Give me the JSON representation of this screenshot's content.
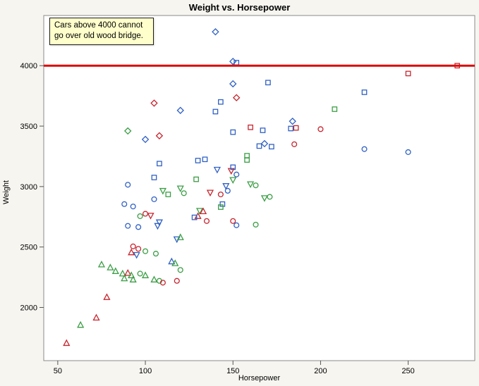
{
  "annotation": {
    "text": "Cars above 4000 cannot go over old wood bridge."
  },
  "chart_data": {
    "type": "scatter",
    "title": "Weight vs. Horsepower",
    "xlabel": "Horsepower",
    "ylabel": "Weight",
    "xlim": [
      42,
      288
    ],
    "ylim": [
      1560,
      4415
    ],
    "xticks": [
      50,
      100,
      150,
      200,
      250
    ],
    "yticks": [
      2000,
      2500,
      3000,
      3500,
      4000
    ],
    "grid": false,
    "legend": "none",
    "ref_line": {
      "y": 4000,
      "color": "#dd0a0a",
      "width": 3
    },
    "colors": {
      "r": "#c6252f",
      "g": "#3b9e45",
      "b": "#3061c4"
    },
    "frame_color": "#8a8a8a",
    "plot_bg": "#ffffff",
    "marker_names": {
      "c": "circle",
      "s": "square",
      "d": "diamond",
      "tu": "triangle-up",
      "td": "triangle-down"
    },
    "point_format": [
      "horsepower",
      "weight",
      "color_key",
      "marker_key"
    ],
    "points": [
      [
        140,
        4280,
        "b",
        "d"
      ],
      [
        150,
        4035,
        "b",
        "d"
      ],
      [
        152,
        4025,
        "b",
        "s"
      ],
      [
        278,
        4000,
        "r",
        "s"
      ],
      [
        250,
        3935,
        "r",
        "s"
      ],
      [
        170,
        3860,
        "b",
        "s"
      ],
      [
        150,
        3850,
        "b",
        "d"
      ],
      [
        225,
        3780,
        "b",
        "s"
      ],
      [
        152,
        3735,
        "r",
        "d"
      ],
      [
        143,
        3700,
        "b",
        "s"
      ],
      [
        105,
        3690,
        "r",
        "d"
      ],
      [
        140,
        3620,
        "b",
        "s"
      ],
      [
        120,
        3630,
        "b",
        "d"
      ],
      [
        208,
        3640,
        "g",
        "s"
      ],
      [
        184,
        3540,
        "b",
        "d"
      ],
      [
        183,
        3480,
        "b",
        "s"
      ],
      [
        160,
        3490,
        "r",
        "s"
      ],
      [
        186,
        3485,
        "r",
        "s"
      ],
      [
        200,
        3475,
        "r",
        "c"
      ],
      [
        150,
        3450,
        "b",
        "s"
      ],
      [
        167,
        3465,
        "b",
        "s"
      ],
      [
        108,
        3420,
        "r",
        "d"
      ],
      [
        90,
        3460,
        "g",
        "d"
      ],
      [
        100,
        3390,
        "b",
        "d"
      ],
      [
        168,
        3355,
        "b",
        "d"
      ],
      [
        172,
        3330,
        "b",
        "s"
      ],
      [
        165,
        3335,
        "b",
        "s"
      ],
      [
        225,
        3310,
        "b",
        "c"
      ],
      [
        250,
        3285,
        "b",
        "c"
      ],
      [
        185,
        3350,
        "r",
        "c"
      ],
      [
        158,
        3255,
        "g",
        "s"
      ],
      [
        158,
        3220,
        "g",
        "s"
      ],
      [
        130,
        3215,
        "b",
        "s"
      ],
      [
        108,
        3190,
        "b",
        "s"
      ],
      [
        134,
        3225,
        "b",
        "s"
      ],
      [
        141,
        3140,
        "b",
        "td"
      ],
      [
        149,
        3130,
        "r",
        "td"
      ],
      [
        150,
        3160,
        "b",
        "s"
      ],
      [
        152,
        3100,
        "b",
        "c"
      ],
      [
        105,
        3075,
        "b",
        "s"
      ],
      [
        90,
        3015,
        "b",
        "c"
      ],
      [
        129,
        3060,
        "g",
        "s"
      ],
      [
        150,
        3055,
        "g",
        "td"
      ],
      [
        160,
        3020,
        "g",
        "td"
      ],
      [
        163,
        3010,
        "g",
        "c"
      ],
      [
        147,
        2965,
        "b",
        "c"
      ],
      [
        146,
        3005,
        "b",
        "td"
      ],
      [
        120,
        2985,
        "g",
        "td"
      ],
      [
        122,
        2945,
        "g",
        "c"
      ],
      [
        110,
        2965,
        "g",
        "td"
      ],
      [
        113,
        2935,
        "g",
        "s"
      ],
      [
        137,
        2950,
        "r",
        "td"
      ],
      [
        143,
        2935,
        "r",
        "c"
      ],
      [
        88,
        2855,
        "b",
        "c"
      ],
      [
        93,
        2835,
        "b",
        "c"
      ],
      [
        105,
        2895,
        "b",
        "c"
      ],
      [
        131,
        2800,
        "g",
        "td"
      ],
      [
        133,
        2795,
        "r",
        "tu"
      ],
      [
        144,
        2855,
        "b",
        "s"
      ],
      [
        143,
        2830,
        "g",
        "s"
      ],
      [
        168,
        2905,
        "g",
        "td"
      ],
      [
        171,
        2915,
        "g",
        "c"
      ],
      [
        100,
        2775,
        "r",
        "c"
      ],
      [
        103,
        2760,
        "r",
        "td"
      ],
      [
        97,
        2755,
        "g",
        "c"
      ],
      [
        130,
        2755,
        "r",
        "tu"
      ],
      [
        135,
        2715,
        "r",
        "c"
      ],
      [
        150,
        2715,
        "r",
        "c"
      ],
      [
        128,
        2745,
        "b",
        "s"
      ],
      [
        152,
        2680,
        "b",
        "c"
      ],
      [
        163,
        2685,
        "g",
        "c"
      ],
      [
        108,
        2705,
        "b",
        "td"
      ],
      [
        107,
        2675,
        "b",
        "td"
      ],
      [
        90,
        2675,
        "b",
        "c"
      ],
      [
        96,
        2665,
        "b",
        "c"
      ],
      [
        118,
        2565,
        "b",
        "td"
      ],
      [
        120,
        2580,
        "g",
        "tu"
      ],
      [
        93,
        2505,
        "r",
        "c"
      ],
      [
        96,
        2485,
        "r",
        "c"
      ],
      [
        95,
        2435,
        "b",
        "td"
      ],
      [
        100,
        2465,
        "g",
        "c"
      ],
      [
        106,
        2445,
        "g",
        "c"
      ],
      [
        92,
        2455,
        "r",
        "tu"
      ],
      [
        75,
        2355,
        "g",
        "tu"
      ],
      [
        80,
        2330,
        "g",
        "tu"
      ],
      [
        83,
        2300,
        "g",
        "tu"
      ],
      [
        87,
        2280,
        "g",
        "tu"
      ],
      [
        90,
        2285,
        "r",
        "tu"
      ],
      [
        92,
        2265,
        "g",
        "tu"
      ],
      [
        97,
        2280,
        "g",
        "c"
      ],
      [
        100,
        2265,
        "g",
        "tu"
      ],
      [
        105,
        2230,
        "g",
        "tu"
      ],
      [
        108,
        2220,
        "g",
        "c"
      ],
      [
        115,
        2380,
        "b",
        "tu"
      ],
      [
        117,
        2365,
        "g",
        "tu"
      ],
      [
        120,
        2310,
        "g",
        "c"
      ],
      [
        110,
        2205,
        "r",
        "c"
      ],
      [
        118,
        2220,
        "r",
        "c"
      ],
      [
        88,
        2240,
        "g",
        "tu"
      ],
      [
        93,
        2230,
        "g",
        "tu"
      ],
      [
        78,
        2085,
        "r",
        "tu"
      ],
      [
        72,
        1915,
        "r",
        "tu"
      ],
      [
        63,
        1855,
        "g",
        "tu"
      ],
      [
        55,
        1705,
        "r",
        "tu"
      ]
    ]
  }
}
